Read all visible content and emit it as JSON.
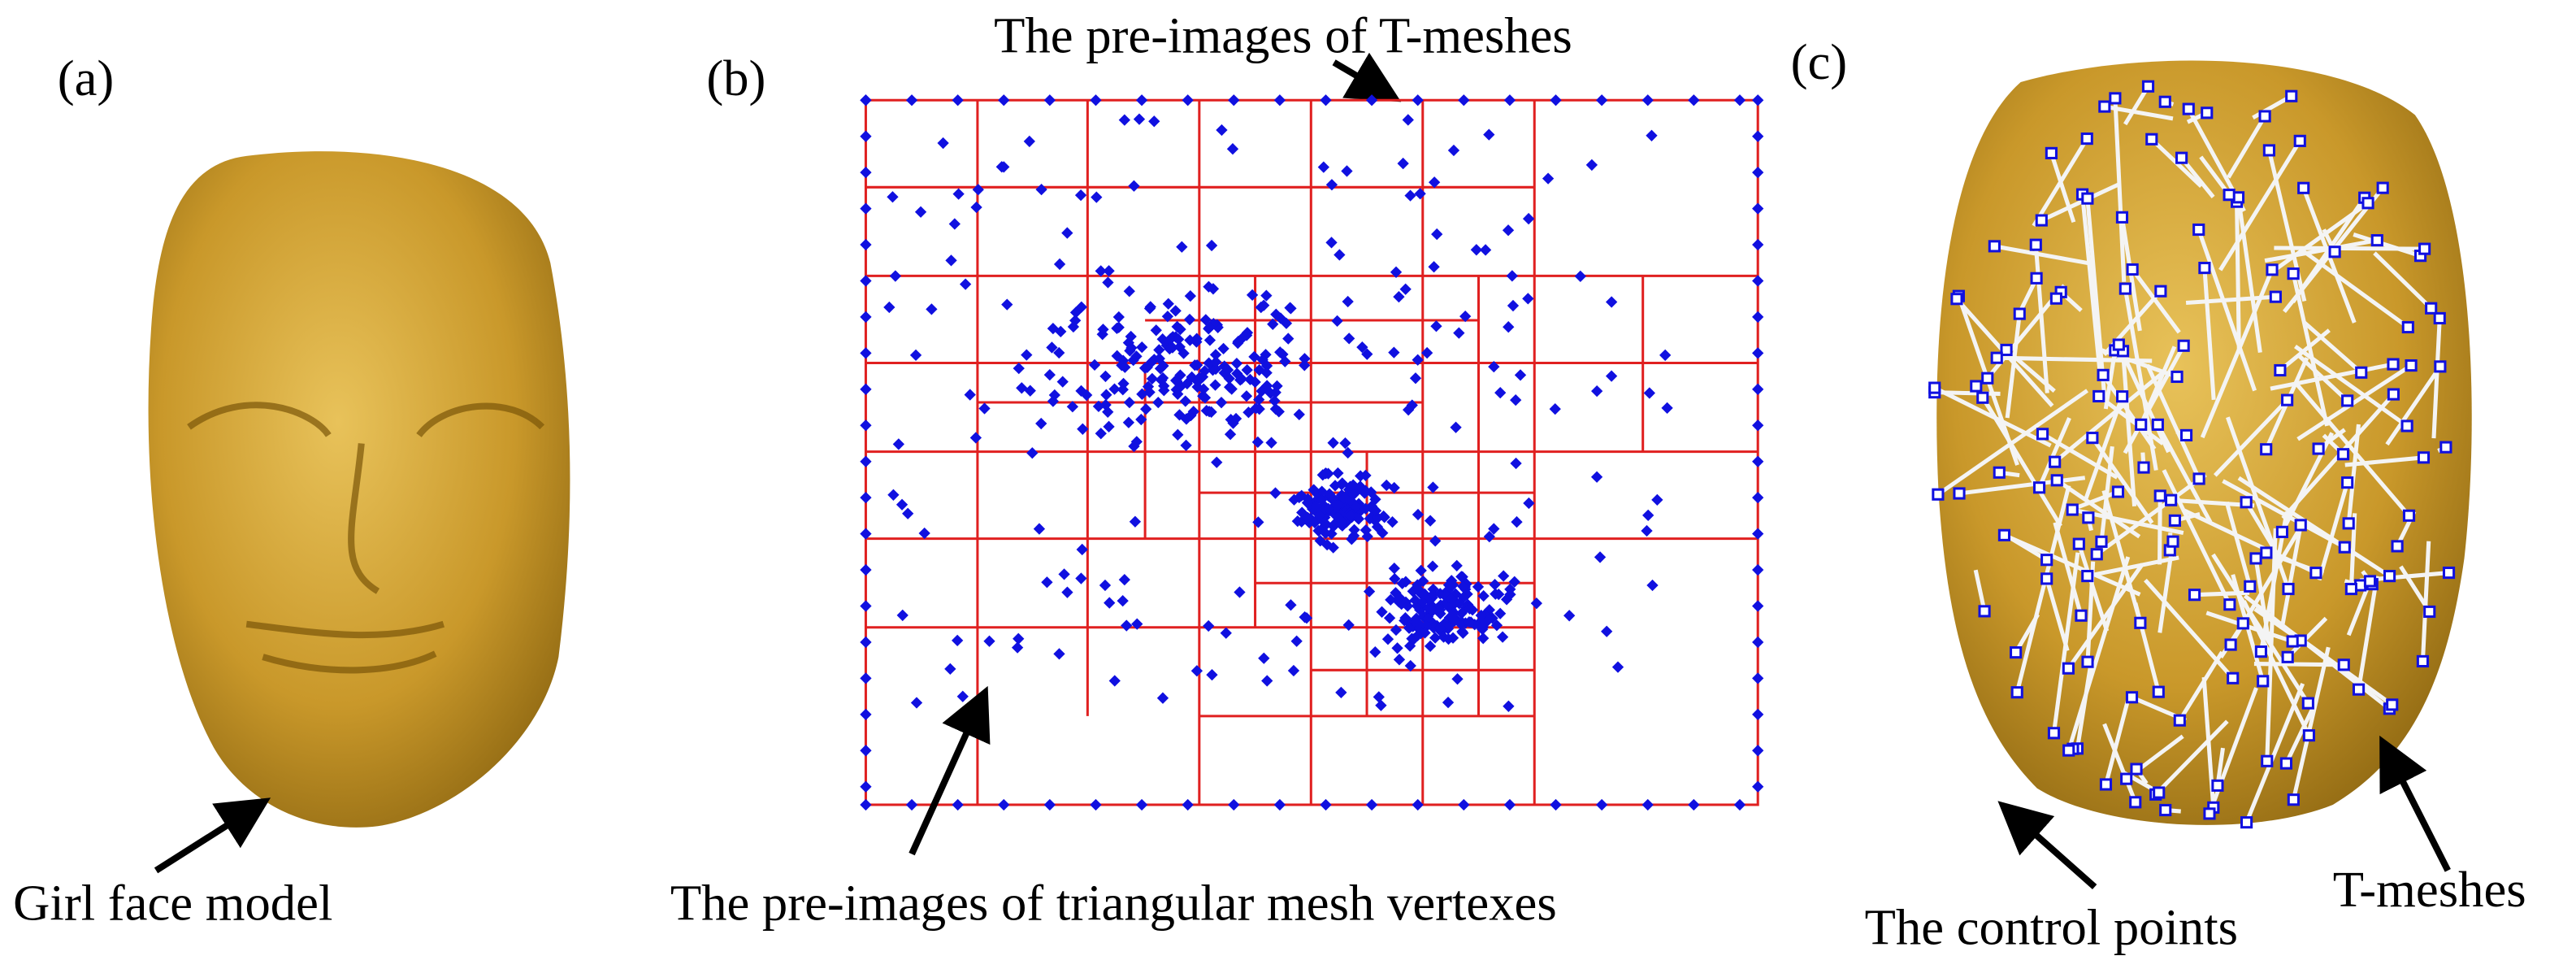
{
  "panels": [
    {
      "label": "(a)",
      "caption": "Girl face model"
    },
    {
      "label": "(b)",
      "top_note": "The pre-images of T-meshes",
      "bottom_note": "The pre-images of triangular mesh vertexes"
    },
    {
      "label": "(c)",
      "left_note": "The control points",
      "right_note": "T-meshes"
    }
  ]
}
